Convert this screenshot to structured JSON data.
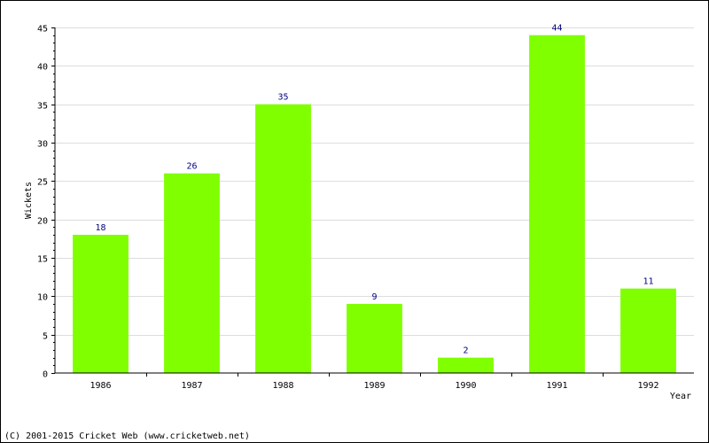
{
  "chart_data": {
    "type": "bar",
    "title": "",
    "xlabel": "Year",
    "ylabel": "Wickets",
    "categories": [
      "1986",
      "1987",
      "1988",
      "1989",
      "1990",
      "1991",
      "1992"
    ],
    "values": [
      18,
      26,
      35,
      9,
      2,
      44,
      11
    ],
    "data_labels": [
      "18",
      "26",
      "35",
      "9",
      "2",
      "44",
      "11"
    ],
    "ylim": [
      0,
      45
    ],
    "yticks": [
      "0",
      "5",
      "10",
      "15",
      "20",
      "25",
      "30",
      "35",
      "40",
      "45"
    ],
    "ytick_values": [
      0,
      5,
      10,
      15,
      20,
      25,
      30,
      35,
      40,
      45
    ],
    "grid": true,
    "legend": "none",
    "bar_color": "#80ff00",
    "label_color": "#000080",
    "grid_color": "#dddddd"
  },
  "footer": {
    "copyright": "(C) 2001-2015 Cricket Web (www.cricketweb.net)"
  }
}
